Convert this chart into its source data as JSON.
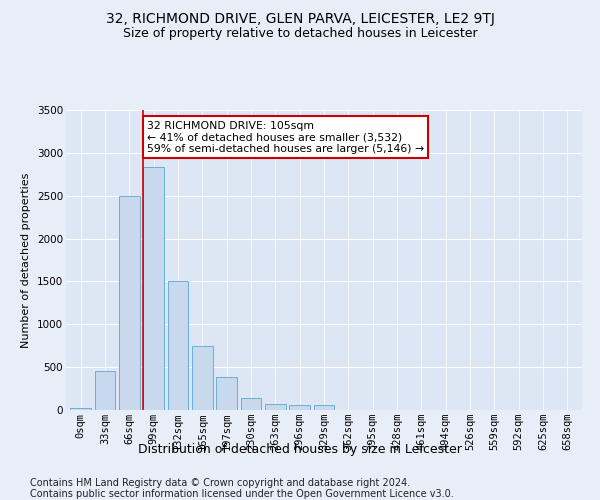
{
  "title": "32, RICHMOND DRIVE, GLEN PARVA, LEICESTER, LE2 9TJ",
  "subtitle": "Size of property relative to detached houses in Leicester",
  "xlabel": "Distribution of detached houses by size in Leicester",
  "ylabel": "Number of detached properties",
  "bar_color": "#c8d9ee",
  "bar_edge_color": "#6baed6",
  "categories": [
    "0sqm",
    "33sqm",
    "66sqm",
    "99sqm",
    "132sqm",
    "165sqm",
    "197sqm",
    "230sqm",
    "263sqm",
    "296sqm",
    "329sqm",
    "362sqm",
    "395sqm",
    "428sqm",
    "461sqm",
    "494sqm",
    "526sqm",
    "559sqm",
    "592sqm",
    "625sqm",
    "658sqm"
  ],
  "values": [
    20,
    460,
    2500,
    2830,
    1510,
    750,
    390,
    145,
    75,
    55,
    55,
    0,
    0,
    0,
    0,
    0,
    0,
    0,
    0,
    0,
    0
  ],
  "ylim": [
    0,
    3500
  ],
  "yticks": [
    0,
    500,
    1000,
    1500,
    2000,
    2500,
    3000,
    3500
  ],
  "property_line_color": "#cc0000",
  "annotation_text": "32 RICHMOND DRIVE: 105sqm\n← 41% of detached houses are smaller (3,532)\n59% of semi-detached houses are larger (5,146) →",
  "annotation_box_facecolor": "#ffffff",
  "annotation_box_edgecolor": "#cc0000",
  "footer_line1": "Contains HM Land Registry data © Crown copyright and database right 2024.",
  "footer_line2": "Contains public sector information licensed under the Open Government Licence v3.0.",
  "fig_facecolor": "#e8eef8",
  "axes_facecolor": "#dce6f5",
  "grid_color": "#ffffff",
  "title_fontsize": 10,
  "subtitle_fontsize": 9,
  "xlabel_fontsize": 9,
  "ylabel_fontsize": 8,
  "tick_fontsize": 7.5,
  "footer_fontsize": 7
}
